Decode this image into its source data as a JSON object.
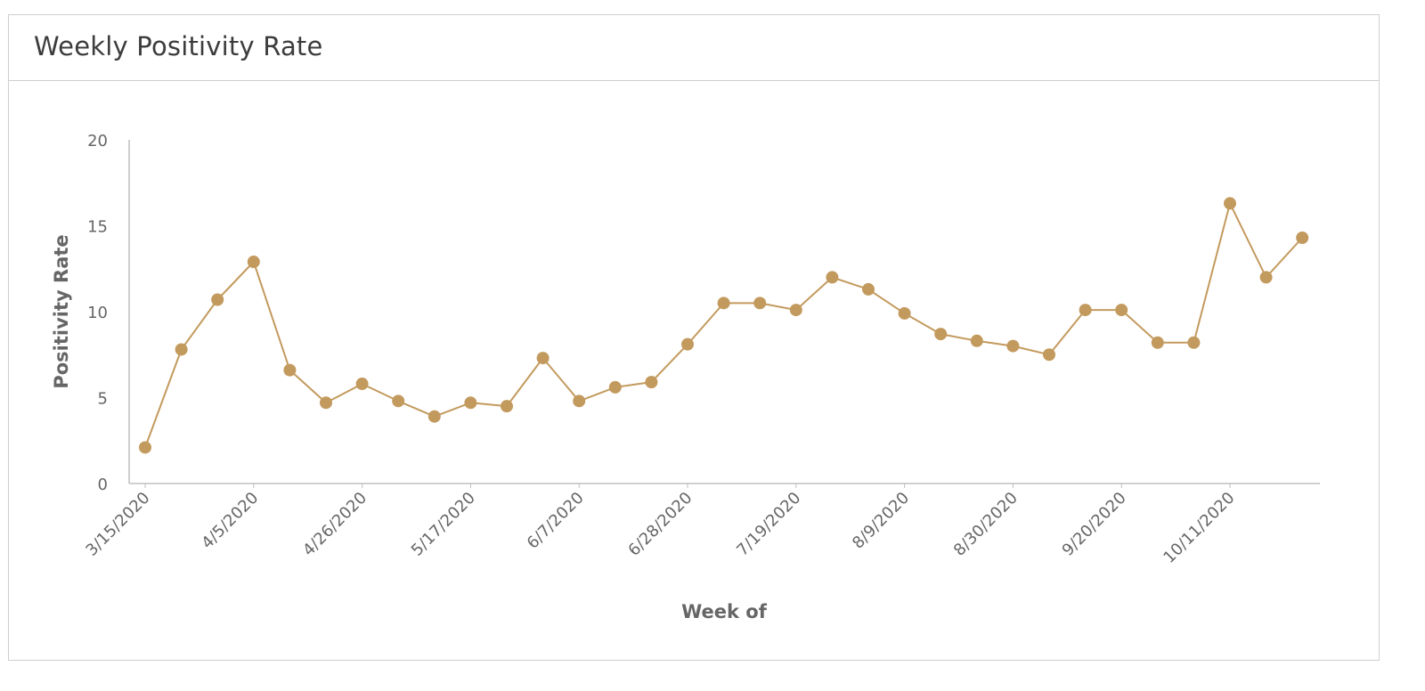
{
  "panel": {
    "title": "Weekly Positivity Rate"
  },
  "chart_data": {
    "type": "line",
    "title": "Weekly Positivity Rate",
    "xlabel": "Week of",
    "ylabel": "Positivity Rate",
    "ylim": [
      0,
      20
    ],
    "yticks": [
      0,
      5,
      10,
      15,
      20
    ],
    "grid": false,
    "legend": "none",
    "x_tick_labels": [
      "3/15/2020",
      "4/5/2020",
      "4/26/2020",
      "5/17/2020",
      "6/7/2020",
      "6/28/2020",
      "7/19/2020",
      "8/9/2020",
      "8/30/2020",
      "9/20/2020",
      "10/11/2020"
    ],
    "x": [
      "3/15/2020",
      "3/22/2020",
      "3/29/2020",
      "4/5/2020",
      "4/12/2020",
      "4/19/2020",
      "4/26/2020",
      "5/3/2020",
      "5/10/2020",
      "5/17/2020",
      "5/24/2020",
      "5/31/2020",
      "6/7/2020",
      "6/14/2020",
      "6/21/2020",
      "6/28/2020",
      "7/5/2020",
      "7/12/2020",
      "7/19/2020",
      "7/26/2020",
      "8/2/2020",
      "8/9/2020",
      "8/16/2020",
      "8/23/2020",
      "8/30/2020",
      "9/6/2020",
      "9/13/2020",
      "9/20/2020",
      "9/27/2020",
      "10/4/2020",
      "10/11/2020",
      "10/18/2020",
      "10/25/2020"
    ],
    "series": [
      {
        "color": "#c39a5e",
        "values": [
          2.1,
          7.8,
          10.7,
          12.9,
          6.6,
          4.7,
          5.8,
          4.8,
          3.9,
          4.7,
          4.5,
          7.3,
          4.8,
          5.6,
          5.9,
          8.1,
          10.5,
          10.5,
          10.1,
          12.0,
          11.3,
          9.9,
          8.7,
          8.3,
          8.0,
          7.5,
          10.1,
          10.1,
          8.2,
          8.2,
          16.3,
          12.0,
          14.3
        ]
      }
    ],
    "colors": {
      "axis": "#bfbfbf",
      "tick_text": "#666666"
    }
  }
}
